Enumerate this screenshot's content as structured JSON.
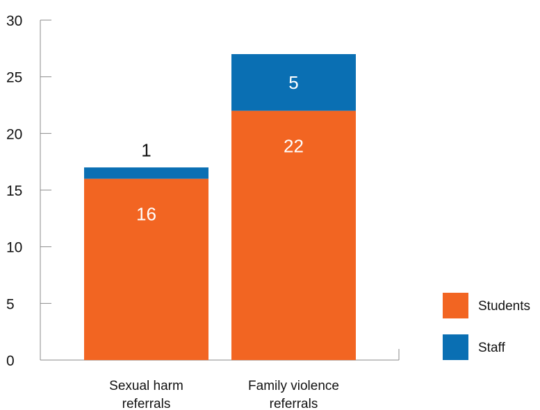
{
  "chart_data": {
    "type": "bar",
    "stacked": true,
    "categories": [
      [
        "Sexual harm",
        "referrals"
      ],
      [
        "Family violence",
        "referrals"
      ]
    ],
    "series": [
      {
        "name": "Students",
        "values": [
          16,
          22
        ],
        "color": "#f26522"
      },
      {
        "name": "Staff",
        "values": [
          1,
          5
        ],
        "color": "#0a6fb3"
      }
    ],
    "ylim": [
      0,
      30
    ],
    "yticks": [
      "0",
      "5",
      "10",
      "15",
      "20",
      "25",
      "30"
    ],
    "data_labels": [
      {
        "series": 0,
        "index": 0,
        "text": "16"
      },
      {
        "series": 1,
        "index": 0,
        "text": "1"
      },
      {
        "series": 0,
        "index": 1,
        "text": "22"
      },
      {
        "series": 1,
        "index": 1,
        "text": "5"
      }
    ],
    "grid": false,
    "legend": "right",
    "title": "",
    "xlabel": "",
    "ylabel": ""
  }
}
